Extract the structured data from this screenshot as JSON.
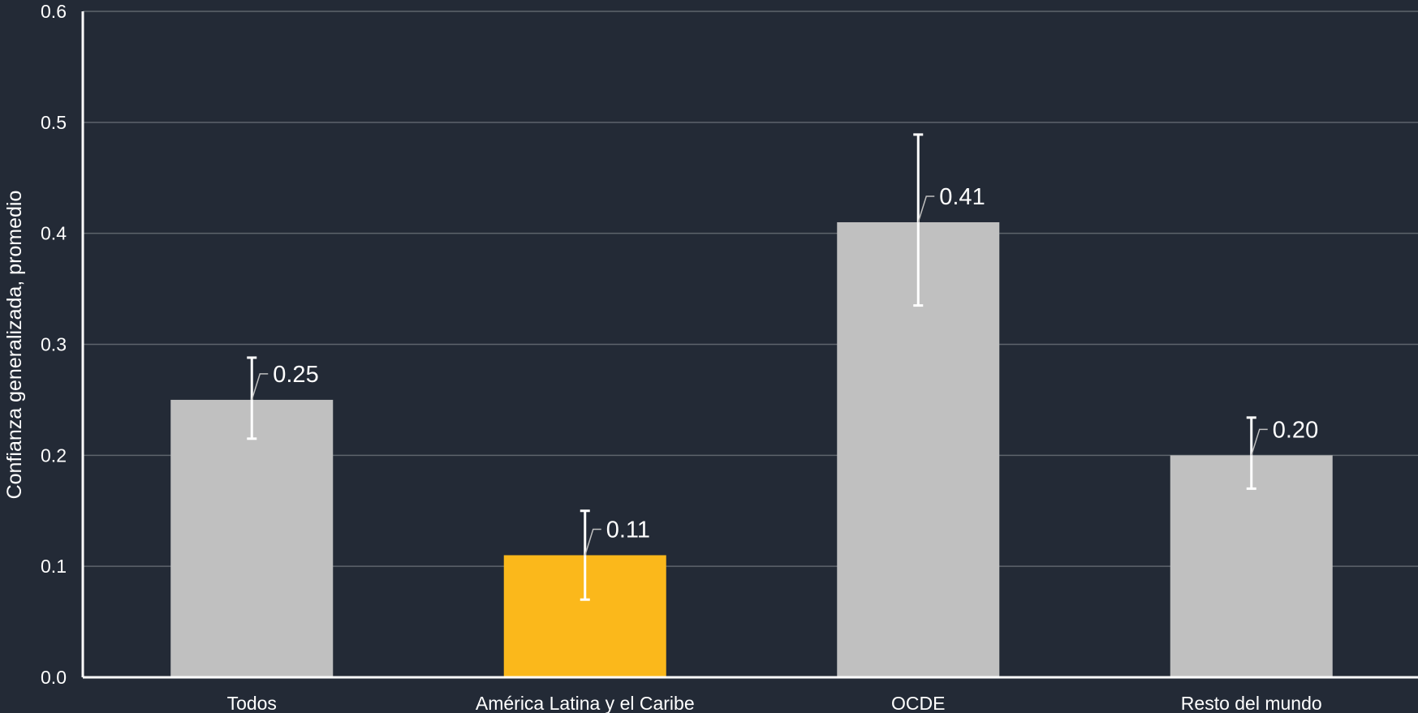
{
  "chart_data": {
    "type": "bar",
    "title": "",
    "xlabel": "",
    "ylabel": "Confianza generalizada, promedio",
    "ylim": [
      0.0,
      0.6
    ],
    "yticks": [
      "0.0",
      "0.1",
      "0.2",
      "0.3",
      "0.4",
      "0.5",
      "0.6"
    ],
    "grid": true,
    "categories": [
      "Todos",
      "América Latina y el Caribe",
      "OCDE",
      "Resto del mundo"
    ],
    "values": [
      0.25,
      0.11,
      0.41,
      0.2
    ],
    "value_labels": [
      "0.25",
      "0.11",
      "0.41",
      "0.20"
    ],
    "error_low": [
      0.215,
      0.07,
      0.335,
      0.17
    ],
    "error_high": [
      0.288,
      0.15,
      0.489,
      0.234
    ],
    "highlight_index": 1,
    "colors": {
      "background": "#232a36",
      "bar": "#c0c0c0",
      "highlight": "#fbb81b",
      "grid": "#5e646c",
      "axis": "#ffffff",
      "text": "#ffffff"
    }
  }
}
